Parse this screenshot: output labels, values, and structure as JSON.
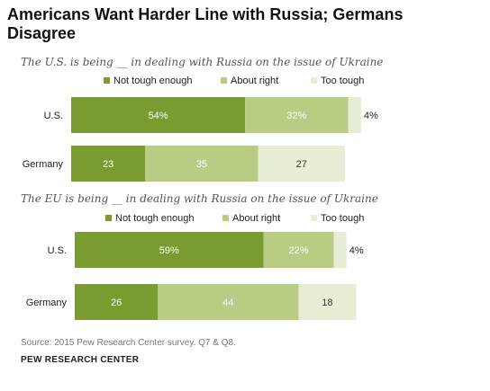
{
  "title": "Americans Want Harder Line with Russia; Germans Disagree",
  "legend": [
    "Not tough enough",
    "About right",
    "Too tough"
  ],
  "colors": {
    "not_tough": "#7a9b30",
    "about_right": "#b8cc84",
    "too_tough": "#e8eed6"
  },
  "footer": {
    "source": "Source: 2015 Pew Research Center survey. Q7 & Q8.",
    "brand": "PEW RESEARCH CENTER"
  },
  "chart_data": [
    {
      "type": "bar",
      "orientation": "horizontal",
      "stacked": true,
      "title": "The U.S. is being __ in dealing with Russia on the issue of Ukraine",
      "categories": [
        "U.S.",
        "Germany"
      ],
      "series": [
        {
          "name": "Not tough enough",
          "values": [
            54,
            23
          ],
          "labels": [
            "54%",
            "23"
          ]
        },
        {
          "name": "About right",
          "values": [
            32,
            35
          ],
          "labels": [
            "32%",
            "35"
          ]
        },
        {
          "name": "Too tough",
          "values": [
            4,
            27
          ],
          "labels": [
            "4%",
            "27"
          ]
        }
      ]
    },
    {
      "type": "bar",
      "orientation": "horizontal",
      "stacked": true,
      "title": "The EU is being __ in dealing with Russia on the issue of Ukraine",
      "categories": [
        "U.S.",
        "Germany"
      ],
      "series": [
        {
          "name": "Not tough enough",
          "values": [
            59,
            26
          ],
          "labels": [
            "59%",
            "26"
          ]
        },
        {
          "name": "About right",
          "values": [
            22,
            44
          ],
          "labels": [
            "22%",
            "44"
          ]
        },
        {
          "name": "Too tough",
          "values": [
            4,
            18
          ],
          "labels": [
            "4%",
            "18"
          ]
        }
      ]
    }
  ]
}
